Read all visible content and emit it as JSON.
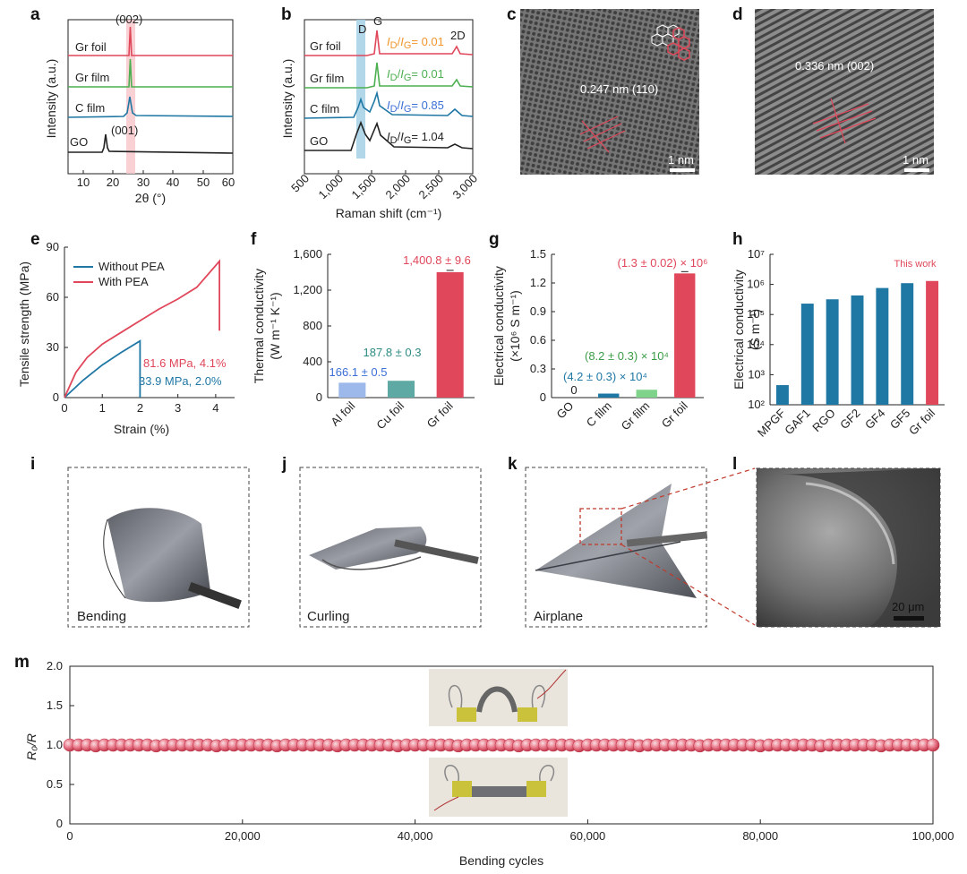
{
  "panel_labels": [
    "a",
    "b",
    "c",
    "d",
    "e",
    "f",
    "g",
    "h",
    "i",
    "j",
    "k",
    "l",
    "m"
  ],
  "colors": {
    "red": "#e0475a",
    "green": "#4caf50",
    "teal": "#1f77a4",
    "black": "#222222",
    "orange": "#f0962b",
    "blue_light": "#9db8ea",
    "teal_light": "#5ea9a4",
    "green_light": "#7fd38a"
  },
  "chart_data": [
    {
      "panel": "a",
      "type": "line",
      "xlabel": "2θ (°)",
      "ylabel": "Intensity (a.u.)",
      "xlim": [
        5,
        60
      ],
      "xticks": [
        10,
        20,
        30,
        40,
        50,
        60
      ],
      "series": [
        {
          "name": "Gr foil",
          "peak_x": 26.5
        },
        {
          "name": "Gr film",
          "peak_x": 26.5
        },
        {
          "name": "C film",
          "peak_x": 26.0
        },
        {
          "name": "GO",
          "peak_x": 11.5
        }
      ],
      "annotations": [
        "(002)",
        "(001)"
      ]
    },
    {
      "panel": "b",
      "type": "line",
      "xlabel": "Raman shift (cm⁻¹)",
      "ylabel": "Intensity (a.u.)",
      "xlim": [
        500,
        3000
      ],
      "xticks": [
        "500",
        "1,000",
        "1,500",
        "2,000",
        "2,500",
        "3,000"
      ],
      "series": [
        {
          "name": "Gr foil",
          "ratio_text": "= 0.01",
          "ratio": 0.01
        },
        {
          "name": "Gr film",
          "ratio_text": "= 0.01",
          "ratio": 0.01
        },
        {
          "name": "C film",
          "ratio_text": "= 0.85",
          "ratio": 0.85
        },
        {
          "name": "GO",
          "ratio_text": "= 1.04",
          "ratio": 1.04
        }
      ],
      "peak_labels": [
        "D",
        "G",
        "2D"
      ],
      "ratio_label": "I_D/I_G"
    },
    {
      "panel": "e",
      "type": "line",
      "xlabel": "Strain (%)",
      "ylabel": "Tensile strength (MPa)",
      "xlim": [
        0,
        4.5
      ],
      "ylim": [
        0,
        90
      ],
      "xticks": [
        0,
        1,
        2,
        3,
        4
      ],
      "yticks": [
        0,
        30,
        60,
        90
      ],
      "series": [
        {
          "name": "Without PEA",
          "x": [
            0,
            0.5,
            1.0,
            1.5,
            2.0,
            2.0
          ],
          "y": [
            0,
            10.5,
            19.5,
            27,
            33.9,
            0
          ]
        },
        {
          "name": "With PEA",
          "x": [
            0,
            0.3,
            0.6,
            1.0,
            1.5,
            2.0,
            2.5,
            3.0,
            3.5,
            4.1,
            4.1
          ],
          "y": [
            0,
            15,
            24,
            32,
            39,
            46,
            53,
            59,
            66,
            81.6,
            40
          ]
        }
      ],
      "annotations": [
        "81.6 MPa, 4.1%",
        "33.9 MPa, 2.0%"
      ]
    },
    {
      "panel": "f",
      "type": "bar",
      "ylabel_line1": "Thermal conductivity",
      "ylabel_line2": "(W m⁻¹ K⁻¹)",
      "ylim": [
        0,
        1600
      ],
      "yticks": [
        "0",
        "400",
        "800",
        "1,200",
        "1,600"
      ],
      "categories": [
        "Al foil",
        "Cu foil",
        "Gr foil"
      ],
      "values": [
        166.1,
        187.8,
        1400.8
      ],
      "labels": [
        "166.1 ± 0.5",
        "187.8 ± 0.3",
        "1,400.8 ± 9.6"
      ]
    },
    {
      "panel": "g",
      "type": "bar",
      "ylabel_line1": "Electrical conductivity",
      "ylabel_line2": "(×10⁶ S m⁻¹)",
      "ylim": [
        0,
        1.5
      ],
      "yticks": [
        "0",
        "0.3",
        "0.6",
        "0.9",
        "1.2",
        "1.5"
      ],
      "categories": [
        "GO",
        "C film",
        "Gr film",
        "Gr foil"
      ],
      "values": [
        0,
        0.042,
        0.082,
        1.3
      ],
      "labels": [
        "0",
        "(4.2 ± 0.3) × 10⁴",
        "(8.2 ± 0.3) × 10⁴",
        "(1.3 ± 0.02) × 10⁶"
      ]
    },
    {
      "panel": "h",
      "type": "bar",
      "scale": "log",
      "ylabel_line1": "Electrical conductivity",
      "ylabel_line2": "(S m⁻¹)",
      "ylim": [
        100,
        10000000
      ],
      "yticks": [
        "10²",
        "10³",
        "10⁴",
        "10⁵",
        "10⁶",
        "10⁷"
      ],
      "categories": [
        "MPGF",
        "GAF1",
        "RGO",
        "GF2",
        "GF4",
        "GF5",
        "Gr foil"
      ],
      "values": [
        450,
        230000,
        320000,
        430000,
        760000,
        1100000,
        1300000
      ],
      "highlight_label": "This work"
    },
    {
      "panel": "m",
      "type": "scatter",
      "xlabel": "Bending cycles",
      "ylabel": "R₀/R",
      "xlim": [
        0,
        100000
      ],
      "ylim": [
        0,
        2.0
      ],
      "xticks": [
        "0",
        "20,000",
        "40,000",
        "60,000",
        "80,000",
        "100,000"
      ],
      "yticks": [
        "0",
        "0.5",
        "1.0",
        "1.5",
        "2.0"
      ],
      "series": [
        {
          "name": "",
          "value": 1.0
        }
      ]
    }
  ],
  "micrographs": {
    "c": {
      "lattice_text": "0.247 nm (110)",
      "scale_text": "1 nm"
    },
    "d": {
      "lattice_text": "0.336 nm (002)",
      "scale_text": "1 nm"
    },
    "l": {
      "scale_text": "20 μm"
    }
  },
  "photos": {
    "i": "Bending",
    "j": "Curling",
    "k": "Airplane"
  }
}
